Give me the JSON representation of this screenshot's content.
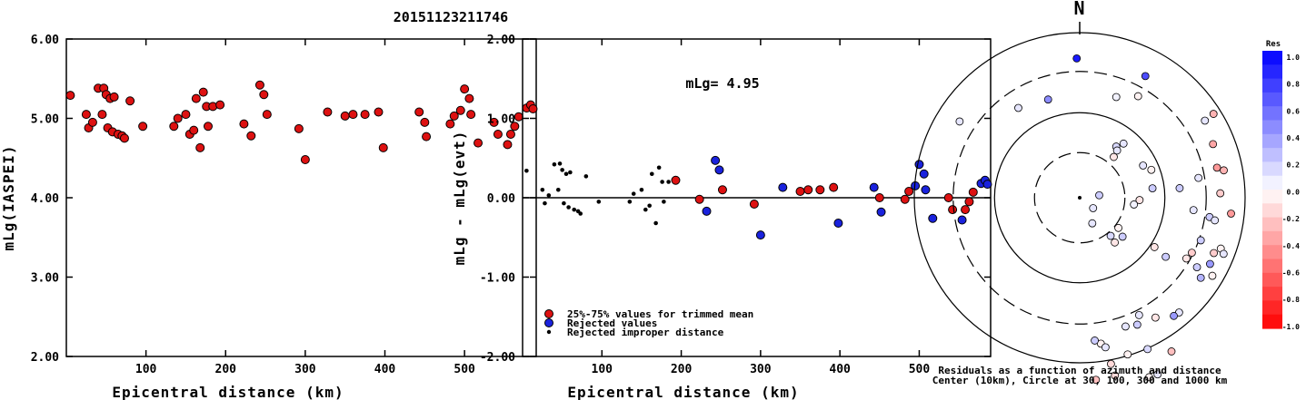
{
  "figure_title": "20151123211746",
  "colors": {
    "red": "#dd1111",
    "blue": "#1a22dd",
    "black": "#000000"
  },
  "chart_data": [
    {
      "type": "scatter",
      "xlabel": "Epicentral distance (km)",
      "ylabel": "mLg(IASPEI)",
      "xlim": [
        0,
        590
      ],
      "ylim": [
        2.0,
        6.0
      ],
      "xticks": [
        "100",
        "200",
        "300",
        "400",
        "500"
      ],
      "xtick_values": [
        100,
        200,
        300,
        400,
        500
      ],
      "yticks": [
        "2.00",
        "3.00",
        "4.00",
        "5.00",
        "6.00"
      ],
      "ytick_values": [
        2,
        3,
        4,
        5,
        6
      ],
      "points": [
        [
          5,
          5.29
        ],
        [
          25,
          5.05
        ],
        [
          28,
          4.88
        ],
        [
          33,
          4.95
        ],
        [
          40,
          5.38
        ],
        [
          45,
          5.05
        ],
        [
          47,
          5.38
        ],
        [
          50,
          5.3
        ],
        [
          52,
          4.88
        ],
        [
          55,
          5.25
        ],
        [
          58,
          4.83
        ],
        [
          60,
          5.27
        ],
        [
          65,
          4.8
        ],
        [
          70,
          4.78
        ],
        [
          73,
          4.75
        ],
        [
          80,
          5.22
        ],
        [
          96,
          4.9
        ],
        [
          135,
          4.9
        ],
        [
          140,
          5.0
        ],
        [
          150,
          5.05
        ],
        [
          155,
          4.8
        ],
        [
          160,
          4.85
        ],
        [
          163,
          5.25
        ],
        [
          168,
          4.63
        ],
        [
          172,
          5.33
        ],
        [
          176,
          5.15
        ],
        [
          178,
          4.9
        ],
        [
          184,
          5.15
        ],
        [
          193,
          5.17
        ],
        [
          223,
          4.93
        ],
        [
          232,
          4.78
        ],
        [
          243,
          5.42
        ],
        [
          248,
          5.3
        ],
        [
          252,
          5.05
        ],
        [
          292,
          4.87
        ],
        [
          300,
          4.48
        ],
        [
          328,
          5.08
        ],
        [
          350,
          5.03
        ],
        [
          360,
          5.05
        ],
        [
          375,
          5.05
        ],
        [
          392,
          5.08
        ],
        [
          398,
          4.63
        ],
        [
          443,
          5.08
        ],
        [
          450,
          4.95
        ],
        [
          452,
          4.77
        ],
        [
          482,
          4.93
        ],
        [
          487,
          5.03
        ],
        [
          495,
          5.1
        ],
        [
          500,
          5.37
        ],
        [
          506,
          5.25
        ],
        [
          508,
          5.05
        ],
        [
          517,
          4.69
        ],
        [
          537,
          4.95
        ],
        [
          542,
          4.8
        ],
        [
          554,
          4.67
        ],
        [
          558,
          4.8
        ],
        [
          563,
          4.9
        ],
        [
          568,
          5.02
        ],
        [
          578,
          5.13
        ],
        [
          583,
          5.17
        ],
        [
          586,
          5.12
        ]
      ]
    },
    {
      "type": "scatter",
      "xlabel": "Epicentral distance (km)",
      "ylabel": "mLg - mLg(evt)",
      "xlim": [
        0,
        590
      ],
      "ylim": [
        -2.0,
        2.0
      ],
      "xticks": [
        "100",
        "200",
        "300",
        "400",
        "500"
      ],
      "xtick_values": [
        100,
        200,
        300,
        400,
        500
      ],
      "yticks": [
        "-2.00",
        "-1.00",
        "0.00",
        "1.00",
        "2.00"
      ],
      "ytick_values": [
        -2,
        -1,
        0,
        1,
        2
      ],
      "annotation": "mLg= 4.95",
      "reference_line": 0,
      "legend": [
        {
          "label": "25%-75% values for trimmed mean",
          "kind": "red"
        },
        {
          "label": "Rejected values",
          "kind": "blue"
        },
        {
          "label": "Rejected improper distance",
          "kind": "black"
        }
      ],
      "series_black": [
        [
          5,
          0.34
        ],
        [
          25,
          0.1
        ],
        [
          28,
          -0.07
        ],
        [
          33,
          0.03
        ],
        [
          40,
          0.42
        ],
        [
          45,
          0.1
        ],
        [
          47,
          0.43
        ],
        [
          50,
          0.35
        ],
        [
          52,
          -0.07
        ],
        [
          55,
          0.3
        ],
        [
          58,
          -0.12
        ],
        [
          60,
          0.32
        ],
        [
          65,
          -0.15
        ],
        [
          70,
          -0.17
        ],
        [
          73,
          -0.2
        ],
        [
          80,
          0.27
        ],
        [
          96,
          -0.05
        ],
        [
          135,
          -0.05
        ],
        [
          140,
          0.05
        ],
        [
          150,
          0.1
        ],
        [
          155,
          -0.15
        ],
        [
          160,
          -0.1
        ],
        [
          163,
          0.3
        ],
        [
          168,
          -0.32
        ],
        [
          172,
          0.38
        ],
        [
          176,
          0.2
        ],
        [
          178,
          -0.05
        ],
        [
          184,
          0.2
        ]
      ],
      "series_red": [
        [
          193,
          0.22
        ],
        [
          223,
          -0.02
        ],
        [
          252,
          0.1
        ],
        [
          292,
          -0.08
        ],
        [
          350,
          0.08
        ],
        [
          360,
          0.1
        ],
        [
          375,
          0.1
        ],
        [
          392,
          0.13
        ],
        [
          450,
          0.0
        ],
        [
          482,
          -0.02
        ],
        [
          487,
          0.08
        ],
        [
          537,
          0.0
        ],
        [
          542,
          -0.15
        ],
        [
          558,
          -0.15
        ],
        [
          563,
          -0.05
        ],
        [
          568,
          0.07
        ]
      ],
      "series_blue": [
        [
          232,
          -0.17
        ],
        [
          243,
          0.47
        ],
        [
          248,
          0.35
        ],
        [
          300,
          -0.47
        ],
        [
          328,
          0.13
        ],
        [
          398,
          -0.32
        ],
        [
          443,
          0.13
        ],
        [
          452,
          -0.18
        ],
        [
          495,
          0.15
        ],
        [
          500,
          0.42
        ],
        [
          506,
          0.3
        ],
        [
          508,
          0.1
        ],
        [
          517,
          -0.26
        ],
        [
          554,
          -0.28
        ],
        [
          578,
          0.18
        ],
        [
          583,
          0.22
        ],
        [
          586,
          0.17
        ]
      ]
    },
    {
      "type": "scatter",
      "subtype": "polar-residuals",
      "north_label": "N",
      "caption_line1": "Residuals as a function of azimuth and distance",
      "caption_line2": "Center (10km), Circle at 30, 100, 300 and 1000 km",
      "rings": [
        {
          "radius_norm": 0.2733,
          "style": "dashed"
        },
        {
          "radius_norm": 0.515,
          "style": "solid"
        },
        {
          "radius_norm": 0.765,
          "style": "dashed"
        },
        {
          "radius_norm": 1.0,
          "style": "solid"
        }
      ],
      "colorbar": {
        "title": "Res",
        "labels": [
          "1.0",
          "0.8",
          "0.6",
          "0.4",
          "0.2",
          "0.0",
          "-0.2",
          "-0.4",
          "-0.6",
          "-0.8",
          "-1.0"
        ],
        "values": [
          1.0,
          0.8,
          0.6,
          0.4,
          0.2,
          0.0,
          -0.2,
          -0.4,
          -0.6,
          -0.8,
          -1.0
        ]
      },
      "points": [
        [
          -0.018,
          -0.844,
          0.9
        ],
        [
          0.397,
          -0.737,
          0.7
        ],
        [
          0.221,
          -0.61,
          0.05
        ],
        [
          0.353,
          -0.615,
          -0.05
        ],
        [
          -0.191,
          -0.595,
          0.45
        ],
        [
          -0.371,
          -0.544,
          0.1
        ],
        [
          -0.726,
          -0.462,
          0.1
        ],
        [
          0.809,
          -0.508,
          -0.3
        ],
        [
          0.757,
          -0.467,
          0.1
        ],
        [
          0.806,
          -0.325,
          -0.35
        ],
        [
          0.83,
          -0.182,
          -0.4
        ],
        [
          0.871,
          -0.166,
          -0.3
        ],
        [
          0.85,
          -0.027,
          -0.2
        ],
        [
          0.915,
          0.096,
          -0.4
        ],
        [
          0.785,
          0.117,
          0.2
        ],
        [
          0.817,
          0.137,
          0.1
        ],
        [
          0.604,
          -0.058,
          0.2
        ],
        [
          0.688,
          0.075,
          0.1
        ],
        [
          0.44,
          -0.057,
          0.2
        ],
        [
          0.221,
          -0.31,
          0.15
        ],
        [
          0.226,
          -0.286,
          0.1
        ],
        [
          0.265,
          -0.328,
          0.1
        ],
        [
          0.206,
          -0.247,
          -0.1
        ],
        [
          0.383,
          -0.195,
          0.1
        ],
        [
          0.433,
          -0.169,
          -0.05
        ],
        [
          0.328,
          0.041,
          0.05
        ],
        [
          0.362,
          0.014,
          -0.1
        ],
        [
          0.118,
          -0.015,
          0.2
        ],
        [
          0.081,
          0.063,
          0.1
        ],
        [
          0.076,
          0.155,
          0.1
        ],
        [
          0.234,
          0.183,
          -0.05
        ],
        [
          0.259,
          0.236,
          0.2
        ],
        [
          0.187,
          0.231,
          0.15
        ],
        [
          0.212,
          0.271,
          -0.1
        ],
        [
          0.452,
          0.299,
          -0.1
        ],
        [
          0.52,
          0.358,
          0.2
        ],
        [
          0.678,
          0.333,
          -0.2
        ],
        [
          0.732,
          0.258,
          0.2
        ],
        [
          0.645,
          0.368,
          -0.1
        ],
        [
          0.709,
          0.421,
          0.2
        ],
        [
          0.811,
          0.335,
          -0.2
        ],
        [
          0.853,
          0.308,
          -0.05
        ],
        [
          0.87,
          0.34,
          0.1
        ],
        [
          0.788,
          0.401,
          0.4
        ],
        [
          0.732,
          0.485,
          0.3
        ],
        [
          0.802,
          0.473,
          -0.05
        ],
        [
          0.601,
          0.695,
          0.1
        ],
        [
          0.569,
          0.716,
          0.4
        ],
        [
          0.458,
          0.726,
          -0.1
        ],
        [
          0.359,
          0.711,
          0.1
        ],
        [
          0.348,
          0.769,
          0.2
        ],
        [
          0.277,
          0.78,
          0.1
        ],
        [
          0.128,
          0.884,
          -0.05
        ],
        [
          0.156,
          0.906,
          0.1
        ],
        [
          0.091,
          0.865,
          0.2
        ],
        [
          0.189,
          1.007,
          -0.15
        ],
        [
          0.29,
          0.949,
          -0.05
        ],
        [
          0.41,
          0.917,
          0.15
        ],
        [
          0.555,
          0.931,
          -0.25
        ],
        [
          0.471,
          1.07,
          0.1
        ],
        [
          0.42,
          1.087,
          -0.05
        ],
        [
          0.213,
          1.077,
          -0.15
        ],
        [
          0.098,
          1.103,
          -0.25
        ],
        [
          0.718,
          -0.12,
          0.1
        ]
      ]
    }
  ]
}
